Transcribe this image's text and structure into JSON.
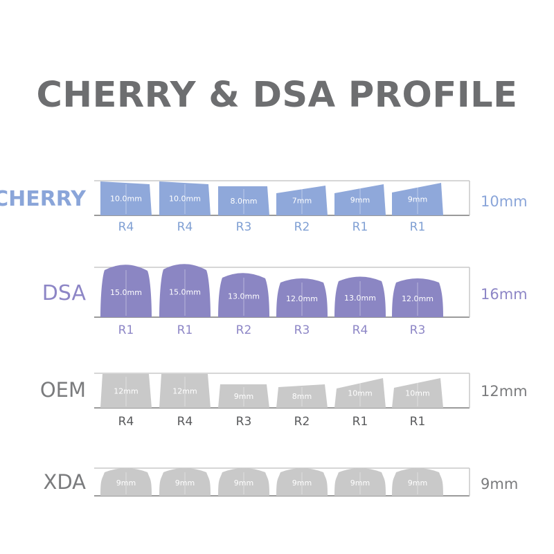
{
  "title": "CHERRY & DSA PROFILE",
  "profiles": [
    {
      "name": "CHERRY",
      "total_height": "10mm",
      "name_color": "#8aa5d9",
      "key_color": "#8fa8da",
      "label_color": "#7f9fd3",
      "keys": [
        {
          "height": "10.0mm",
          "row": "R4"
        },
        {
          "height": "10.0mm",
          "row": "R4"
        },
        {
          "height": "8.0mm",
          "row": "R3"
        },
        {
          "height": "7mm",
          "row": "R2"
        },
        {
          "height": "9mm",
          "row": "R1"
        },
        {
          "height": "9mm",
          "row": "R1"
        }
      ]
    },
    {
      "name": "DSA",
      "total_height": "16mm",
      "name_color": "#8d86c6",
      "key_color": "#8b86c3",
      "label_color": "#8d86c6",
      "keys": [
        {
          "height": "15.0mm",
          "row": "R1"
        },
        {
          "height": "15.0mm",
          "row": "R1"
        },
        {
          "height": "13.0mm",
          "row": "R2"
        },
        {
          "height": "12.0mm",
          "row": "R3"
        },
        {
          "height": "13.0mm",
          "row": "R4"
        },
        {
          "height": "12.0mm",
          "row": "R3"
        }
      ]
    },
    {
      "name": "OEM",
      "total_height": "12mm",
      "name_color": "#7a7b7d",
      "key_color": "#c9c9c9",
      "label_color": "#58595b",
      "keys": [
        {
          "height": "12mm",
          "row": "R4"
        },
        {
          "height": "12mm",
          "row": "R4"
        },
        {
          "height": "9mm",
          "row": "R3"
        },
        {
          "height": "8mm",
          "row": "R2"
        },
        {
          "height": "10mm",
          "row": "R1"
        },
        {
          "height": "10mm",
          "row": "R1"
        }
      ]
    },
    {
      "name": "XDA",
      "total_height": "9mm",
      "name_color": "#7a7b7d",
      "key_color": "#c9c9c9",
      "label_color": "#58595b",
      "keys": [
        {
          "height": "9mm"
        },
        {
          "height": "9mm"
        },
        {
          "height": "9mm"
        },
        {
          "height": "9mm"
        },
        {
          "height": "9mm"
        },
        {
          "height": "9mm"
        }
      ]
    }
  ]
}
